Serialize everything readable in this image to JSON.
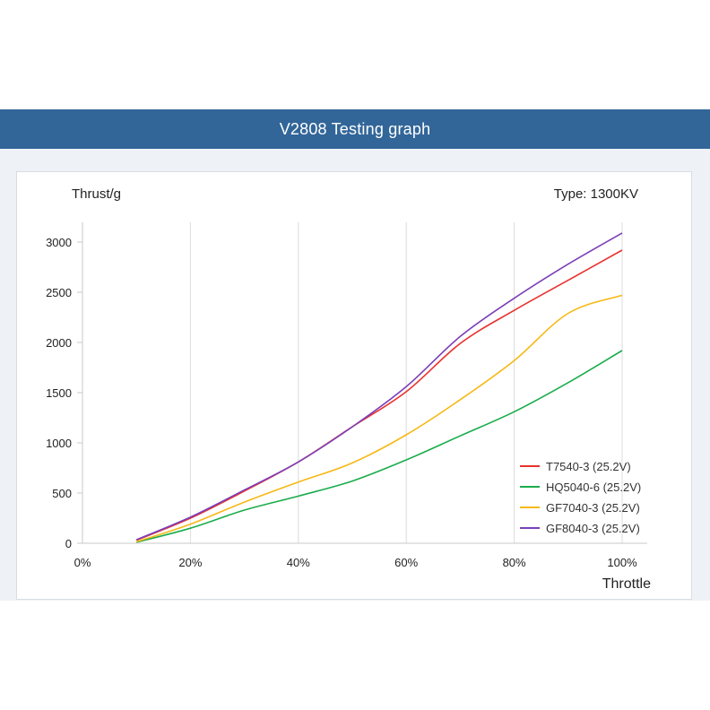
{
  "header": {
    "title": "V2808 Testing graph"
  },
  "chart_data": {
    "type": "line",
    "ylabel": "Thrust/g",
    "xlabel": "Throttle",
    "annotation": "Type: 1300KV",
    "xlim": [
      0,
      100
    ],
    "ylim": [
      0,
      3000
    ],
    "x_ticks": [
      0,
      20,
      40,
      60,
      80,
      100
    ],
    "x_tick_labels": [
      "0%",
      "20%",
      "40%",
      "60%",
      "80%",
      "100%"
    ],
    "y_ticks": [
      0,
      500,
      1000,
      1500,
      2000,
      2500,
      3000
    ],
    "y_tick_labels": [
      "0",
      "500",
      "1000",
      "1500",
      "2000",
      "2500",
      "3000"
    ],
    "grid": "vertical",
    "legend_position": "bottom-right",
    "x": [
      10,
      20,
      30,
      40,
      50,
      60,
      70,
      80,
      90,
      100
    ],
    "series": [
      {
        "name": "T7540-3 (25.2V)",
        "color": "#e8322f",
        "values": [
          30,
          250,
          520,
          810,
          1160,
          1510,
          1990,
          2320,
          2620,
          2920
        ]
      },
      {
        "name": "HQ5040-6 (25.2V)",
        "color": "#1aac4c",
        "values": [
          10,
          150,
          330,
          470,
          620,
          830,
          1070,
          1310,
          1600,
          1920
        ]
      },
      {
        "name": "GF7040-3 (25.2V)",
        "color": "#f6b814",
        "values": [
          15,
          190,
          410,
          610,
          800,
          1080,
          1430,
          1820,
          2290,
          2470
        ]
      },
      {
        "name": "GF8040-3 (25.2V)",
        "color": "#7b3fb7",
        "values": [
          35,
          260,
          530,
          810,
          1160,
          1560,
          2060,
          2440,
          2780,
          3090
        ]
      }
    ]
  }
}
